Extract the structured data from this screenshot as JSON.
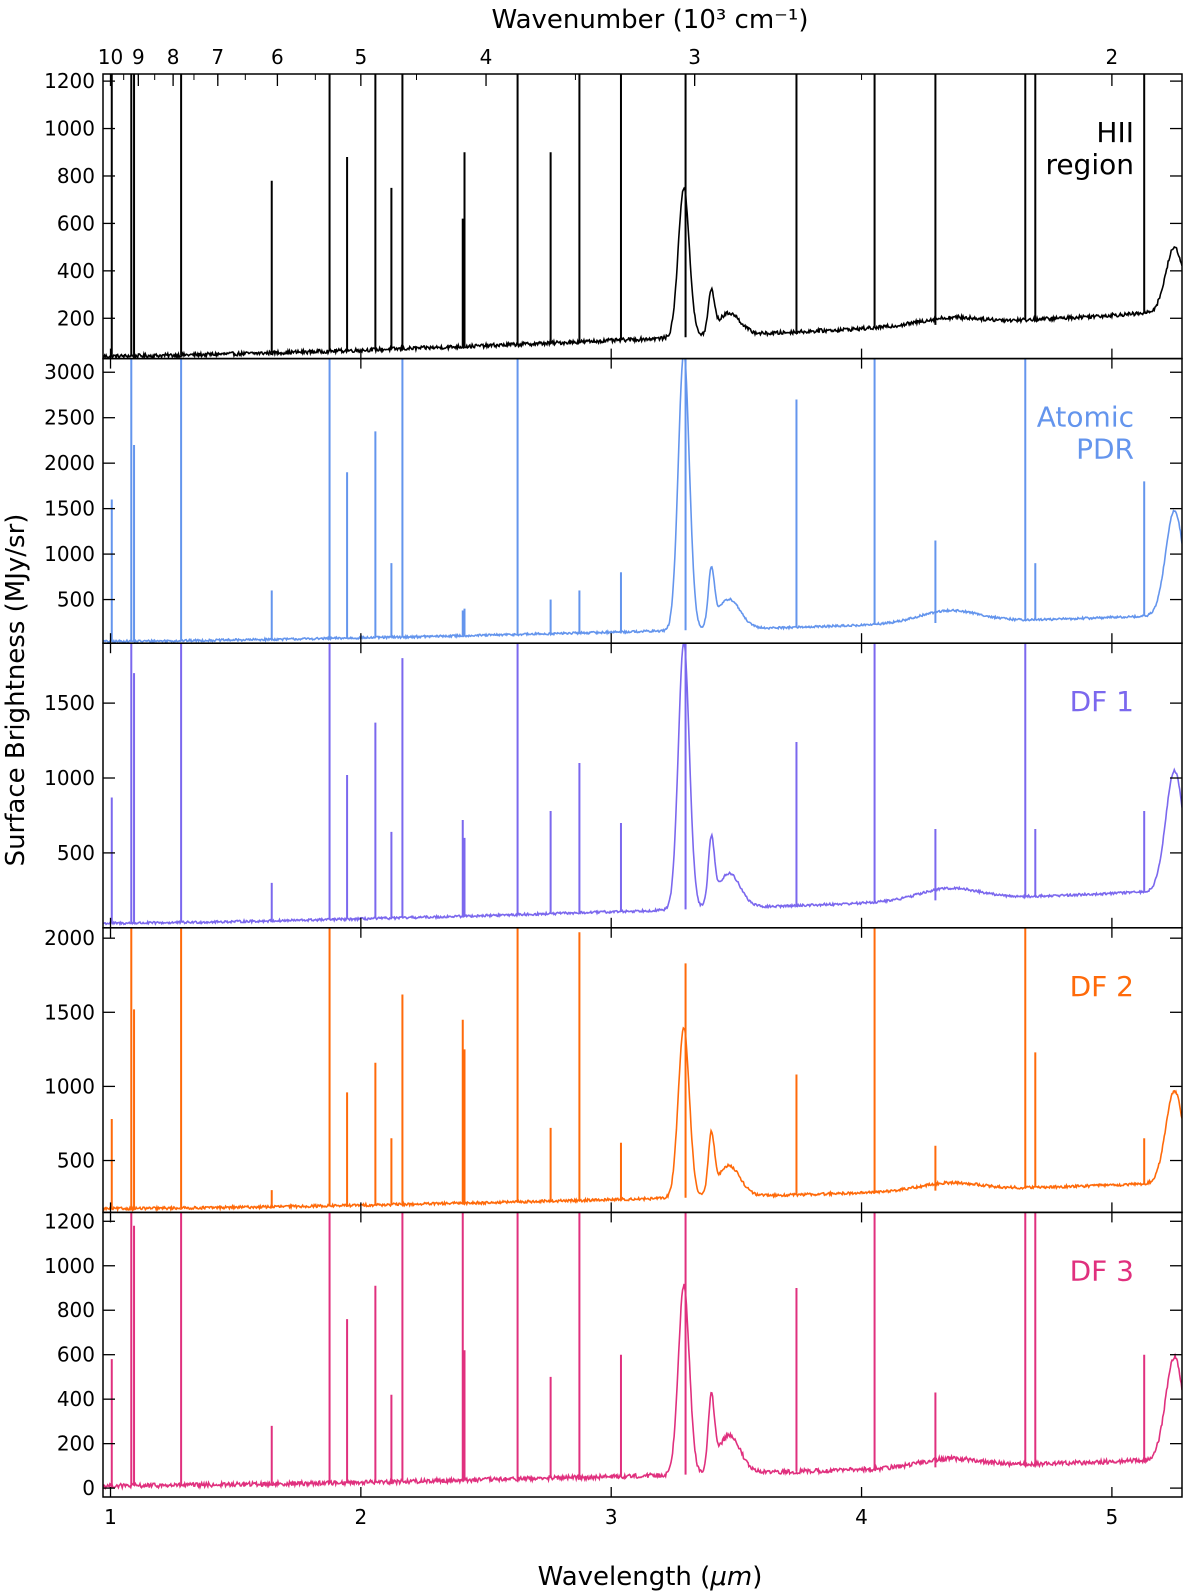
{
  "chart_data": {
    "type": "line",
    "xlabel_prefix": "Wavelength (",
    "xlabel_unit": "μm",
    "xlabel_suffix": ")",
    "ylabel": "Surface Brightness (MJy/sr)",
    "top_axis_label": "Wavenumber (10³ cm⁻¹)",
    "xlim": [
      0.97,
      5.28
    ],
    "x_ticks": [
      1,
      2,
      3,
      4,
      5
    ],
    "x_tick_labels": [
      "1",
      "2",
      "3",
      "4",
      "5"
    ],
    "top_ticks_wavenumber": [
      10,
      9,
      8,
      7,
      6,
      5,
      4,
      3,
      2
    ],
    "top_tick_labels": [
      "10",
      "9",
      "8",
      "7",
      "6",
      "5",
      "4",
      "3",
      "2"
    ],
    "lines_um": [
      1.005,
      1.083,
      1.094,
      1.282,
      1.644,
      1.875,
      1.945,
      2.058,
      2.122,
      2.166,
      2.407,
      2.414,
      2.626,
      2.758,
      2.873,
      3.039,
      3.297,
      3.74,
      4.052,
      4.295,
      4.654,
      4.694,
      5.129
    ],
    "panels": [
      {
        "name": "HII region",
        "label_lines": [
          "HII",
          "region"
        ],
        "color": "#000000",
        "ylim": [
          30,
          1230
        ],
        "y_ticks": [
          200,
          400,
          600,
          800,
          1000,
          1200
        ],
        "y_tick_labels": [
          "200",
          "400",
          "600",
          "800",
          "1000",
          "1200"
        ],
        "continuum_start": 40,
        "continuum_end": 230,
        "aromatic_33": 630,
        "aromatic_34": 170,
        "feature_53": 270,
        "noise": 8,
        "line_peaks": [
          1250,
          1250,
          1250,
          1250,
          780,
          1250,
          880,
          1250,
          750,
          1250,
          620,
          900,
          1250,
          900,
          1250,
          1250,
          1250,
          1250,
          1250,
          1250,
          1250,
          1250,
          1250
        ]
      },
      {
        "name": "Atomic PDR",
        "label_lines": [
          "Atomic",
          "PDR"
        ],
        "color": "#6495ED",
        "ylim": [
          20,
          3150
        ],
        "y_ticks": [
          500,
          1000,
          1500,
          2000,
          2500,
          3000
        ],
        "y_tick_labels": [
          "500",
          "1000",
          "1500",
          "2000",
          "2500",
          "3000"
        ],
        "continuum_start": 40,
        "continuum_end": 330,
        "aromatic_33": 3050,
        "aromatic_34": 600,
        "feature_53": 1150,
        "noise": 12,
        "line_peaks": [
          1600,
          3200,
          2200,
          3200,
          600,
          3200,
          1900,
          2350,
          900,
          3200,
          380,
          400,
          3200,
          500,
          600,
          800,
          3200,
          2700,
          3200,
          1150,
          3200,
          900,
          1800
        ]
      },
      {
        "name": "DF 1",
        "label_lines": [
          "DF 1"
        ],
        "color": "#7B68EE",
        "ylim": [
          0,
          1900
        ],
        "y_ticks": [
          500,
          1000,
          1500
        ],
        "y_tick_labels": [
          "500",
          "1000",
          "1500"
        ],
        "continuum_start": 30,
        "continuum_end": 250,
        "aromatic_33": 1780,
        "aromatic_34": 420,
        "feature_53": 800,
        "noise": 8,
        "line_peaks": [
          870,
          1900,
          1700,
          1900,
          300,
          1900,
          1020,
          1370,
          640,
          1800,
          720,
          600,
          1900,
          780,
          1100,
          700,
          1900,
          1240,
          1900,
          660,
          1900,
          660,
          780
        ]
      },
      {
        "name": "DF 2",
        "label_lines": [
          "DF 2"
        ],
        "color": "#FF6A0A",
        "ylim": [
          150,
          2070
        ],
        "y_ticks": [
          500,
          1000,
          1500,
          2000
        ],
        "y_tick_labels": [
          "500",
          "1000",
          "1500",
          "2000"
        ],
        "continuum_start": 175,
        "continuum_end": 350,
        "aromatic_33": 1150,
        "aromatic_34": 380,
        "feature_53": 620,
        "noise": 9,
        "line_peaks": [
          780,
          2080,
          1520,
          2080,
          300,
          2080,
          960,
          1160,
          650,
          1620,
          1450,
          1250,
          2080,
          720,
          2040,
          620,
          1830,
          1080,
          2080,
          600,
          2080,
          1230,
          650
        ]
      },
      {
        "name": "DF 3",
        "label_lines": [
          "DF 3"
        ],
        "color": "#E0307E",
        "ylim": [
          -40,
          1240
        ],
        "y_ticks": [
          0,
          200,
          400,
          600,
          800,
          1000,
          1200
        ],
        "y_tick_labels": [
          "0",
          "200",
          "400",
          "600",
          "800",
          "1000",
          "1200"
        ],
        "continuum_start": 10,
        "continuum_end": 130,
        "aromatic_33": 850,
        "aromatic_34": 310,
        "feature_53": 460,
        "noise": 10,
        "line_peaks": [
          580,
          1250,
          1180,
          1250,
          280,
          1250,
          760,
          910,
          420,
          1250,
          1250,
          620,
          1250,
          500,
          1250,
          600,
          1250,
          900,
          1250,
          430,
          1250,
          1250,
          600
        ]
      }
    ]
  }
}
